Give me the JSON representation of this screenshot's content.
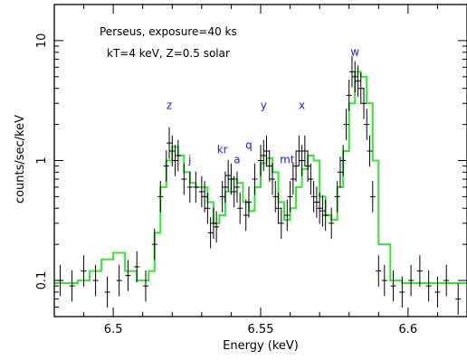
{
  "chart_data": {
    "type": "line",
    "xlabel": "Energy (keV)",
    "ylabel": "counts/sec/keV",
    "xlim": [
      6.48,
      6.62
    ],
    "ylim": [
      0.05,
      20
    ],
    "y_scale": "log",
    "x_ticks": [
      6.5,
      6.55,
      6.6
    ],
    "x_tick_labels": [
      "6.5",
      "6.55",
      "6.6"
    ],
    "y_ticks": [
      0.1,
      1,
      10
    ],
    "y_tick_labels": [
      "0.1",
      "1",
      "10"
    ],
    "annotations": [
      "Perseus, exposure=40 ks",
      "kT=4 keV, Z=0.5 solar"
    ],
    "line_labels": [
      {
        "text": "z",
        "x": 6.519,
        "y": 2.7
      },
      {
        "text": "j",
        "x": 6.526,
        "y": 0.95
      },
      {
        "text": "kr",
        "x": 6.537,
        "y": 1.15
      },
      {
        "text": "a",
        "x": 6.542,
        "y": 0.95
      },
      {
        "text": "q",
        "x": 6.546,
        "y": 1.25
      },
      {
        "text": "y",
        "x": 6.551,
        "y": 2.7
      },
      {
        "text": "mt",
        "x": 6.559,
        "y": 0.95
      },
      {
        "text": "x",
        "x": 6.564,
        "y": 2.7
      },
      {
        "text": "w",
        "x": 6.582,
        "y": 7.5
      }
    ],
    "colors": {
      "model": "#33e633",
      "data": "#000000",
      "labels": "#1a1aff"
    },
    "series": [
      {
        "role": "model",
        "x": [
          6.48,
          6.484,
          6.488,
          6.492,
          6.496,
          6.5,
          6.504,
          6.508,
          6.512,
          6.514,
          6.516,
          6.518,
          6.52,
          6.522,
          6.524,
          6.526,
          6.528,
          6.53,
          6.532,
          6.534,
          6.536,
          6.538,
          6.54,
          6.542,
          6.544,
          6.546,
          6.548,
          6.55,
          6.552,
          6.554,
          6.556,
          6.558,
          6.56,
          6.562,
          6.564,
          6.566,
          6.568,
          6.57,
          6.572,
          6.574,
          6.576,
          6.578,
          6.58,
          6.582,
          6.584,
          6.586,
          6.588,
          6.59,
          6.594,
          6.598,
          6.602,
          6.606,
          6.61,
          6.614,
          6.62
        ],
        "y": [
          0.095,
          0.095,
          0.1,
          0.12,
          0.15,
          0.17,
          0.12,
          0.1,
          0.12,
          0.25,
          0.6,
          1.0,
          1.3,
          1.1,
          0.8,
          0.65,
          0.6,
          0.6,
          0.45,
          0.3,
          0.35,
          0.55,
          0.7,
          0.65,
          0.45,
          0.38,
          0.6,
          0.95,
          1.05,
          0.8,
          0.45,
          0.32,
          0.4,
          0.6,
          0.85,
          1.1,
          1.0,
          0.5,
          0.35,
          0.32,
          0.6,
          1.2,
          3.0,
          5.5,
          5.0,
          3.0,
          1.0,
          0.2,
          0.1,
          0.095,
          0.095,
          0.095,
          0.095,
          0.095,
          0.095
        ]
      },
      {
        "role": "data",
        "x": [
          6.482,
          6.486,
          6.49,
          6.494,
          6.498,
          6.502,
          6.505,
          6.508,
          6.511,
          6.514,
          6.516,
          6.518,
          6.519,
          6.52,
          6.521,
          6.522,
          6.524,
          6.526,
          6.528,
          6.53,
          6.531,
          6.532,
          6.533,
          6.534,
          6.535,
          6.537,
          6.538,
          6.539,
          6.54,
          6.541,
          6.542,
          6.543,
          6.545,
          6.546,
          6.548,
          6.55,
          6.551,
          6.552,
          6.553,
          6.554,
          6.555,
          6.556,
          6.557,
          6.559,
          6.56,
          6.561,
          6.562,
          6.563,
          6.564,
          6.565,
          6.566,
          6.567,
          6.568,
          6.569,
          6.57,
          6.571,
          6.572,
          6.574,
          6.576,
          6.577,
          6.578,
          6.579,
          6.58,
          6.581,
          6.582,
          6.583,
          6.584,
          6.585,
          6.586,
          6.587,
          6.588,
          6.59,
          6.592,
          6.595,
          6.598,
          6.601,
          6.604,
          6.607,
          6.61,
          6.613,
          6.617
        ],
        "y": [
          0.1,
          0.09,
          0.12,
          0.1,
          0.08,
          0.1,
          0.11,
          0.13,
          0.09,
          0.2,
          0.5,
          0.9,
          1.4,
          1.2,
          1.0,
          1.1,
          0.7,
          0.6,
          0.6,
          0.55,
          0.5,
          0.4,
          0.25,
          0.3,
          0.28,
          0.5,
          0.6,
          0.75,
          0.7,
          0.55,
          0.6,
          0.4,
          0.35,
          0.45,
          0.7,
          1.0,
          1.1,
          1.2,
          0.9,
          0.7,
          0.5,
          0.4,
          0.3,
          0.35,
          0.5,
          0.7,
          0.9,
          1.2,
          1.0,
          1.2,
          0.9,
          0.7,
          0.5,
          0.45,
          0.4,
          0.38,
          0.35,
          0.3,
          0.5,
          0.8,
          1.0,
          2.0,
          3.5,
          5.5,
          5.0,
          4.6,
          4.0,
          3.0,
          2.0,
          1.2,
          0.5,
          0.12,
          0.1,
          0.09,
          0.08,
          0.1,
          0.12,
          0.09,
          0.08,
          0.1,
          0.07
        ]
      }
    ]
  }
}
